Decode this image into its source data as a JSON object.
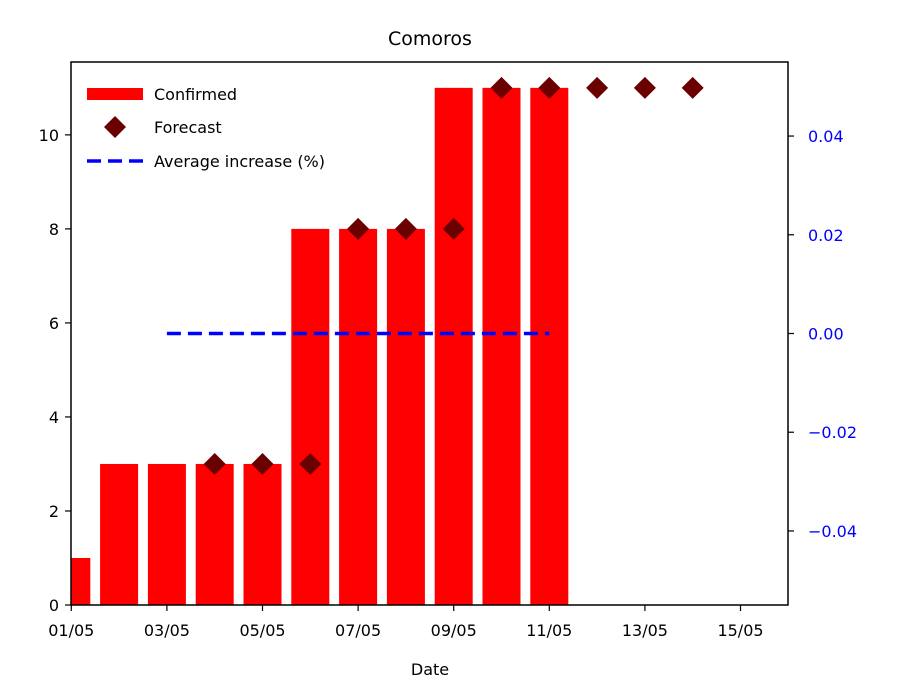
{
  "chart_data": {
    "type": "bar",
    "title": "Comoros",
    "xlabel": "Date",
    "ylabel": "",
    "ylim": [
      0,
      11.55
    ],
    "y2lim": [
      -0.055,
      0.055
    ],
    "yticks": [
      0,
      2,
      4,
      6,
      8,
      10
    ],
    "y2ticks": [
      -0.04,
      -0.02,
      0.0,
      0.02,
      0.04
    ],
    "y2tick_labels": [
      "−0.04",
      "−0.02",
      "0.00",
      "0.02",
      "0.04"
    ],
    "x_ticks": [
      "01/05",
      "03/05",
      "05/05",
      "07/05",
      "09/05",
      "11/05",
      "13/05",
      "15/05"
    ],
    "x_tick_days": [
      1,
      3,
      5,
      7,
      9,
      11,
      13,
      15
    ],
    "xlim_days": [
      0,
      15
    ],
    "grid": false,
    "legend_position": "top-left",
    "series": [
      {
        "name": "Confirmed",
        "kind": "bar",
        "color": "#ff0000",
        "x_days": [
          0,
          1,
          2,
          3,
          4,
          5,
          6,
          7,
          8,
          9,
          10,
          11
        ],
        "values": [
          1,
          1,
          3,
          3,
          3,
          3,
          8,
          8,
          8,
          11,
          11,
          11
        ]
      },
      {
        "name": "Forecast",
        "kind": "scatter",
        "marker": "diamond",
        "color": "#6b0000",
        "x_days": [
          4,
          5,
          6,
          7,
          8,
          9,
          10,
          11,
          12,
          13,
          14
        ],
        "values": [
          3,
          3,
          3,
          8,
          8,
          8,
          11,
          11,
          11,
          11,
          11
        ]
      },
      {
        "name": "Average increase (%)",
        "kind": "line",
        "axis": "right",
        "style": "dashed",
        "color": "#0000ff",
        "x_days": [
          3,
          11
        ],
        "values": [
          0.0,
          0.0
        ]
      }
    ]
  }
}
